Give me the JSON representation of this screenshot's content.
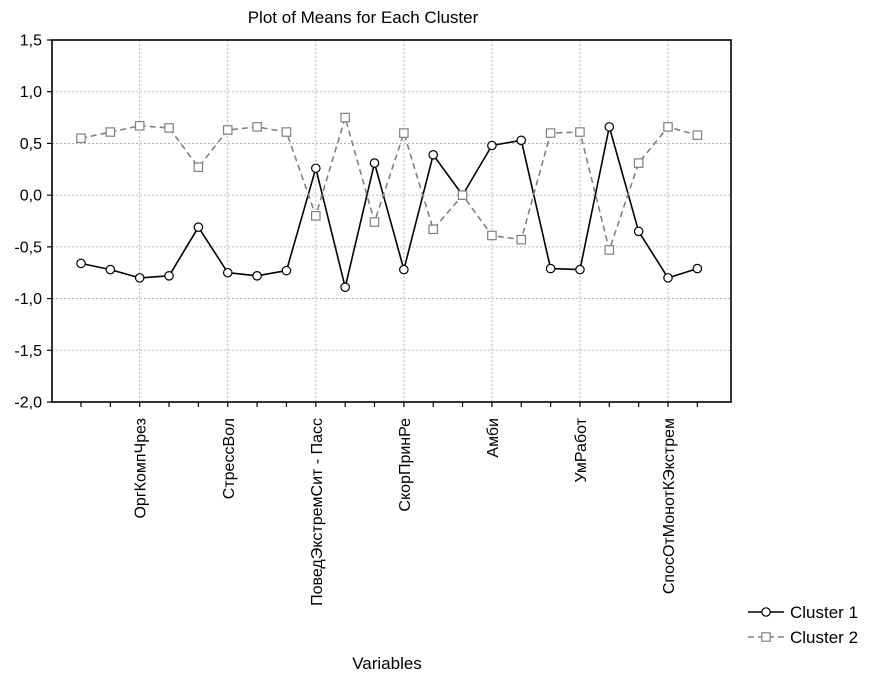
{
  "chart_data": {
    "type": "line",
    "title": "Plot of Means for Each Cluster",
    "xlabel": "Variables",
    "ylabel": "",
    "ylim": [
      -2.0,
      1.5
    ],
    "yticks": [
      "1,5",
      "1,0",
      "0,5",
      "0,0",
      "-0,5",
      "-1,0",
      "-1,5",
      "-2,0"
    ],
    "ytick_values": [
      1.5,
      1.0,
      0.5,
      0.0,
      -0.5,
      -1.0,
      -1.5,
      -2.0
    ],
    "grid": true,
    "legend_position": "bottom-right",
    "n_points": 22,
    "labeled_categories": [
      {
        "index": 2,
        "label": "ОргКомпЧрез"
      },
      {
        "index": 5,
        "label": "СтрессВол"
      },
      {
        "index": 8,
        "label": "ПоведЭкстремСит - Пасс"
      },
      {
        "index": 11,
        "label": "СкорПринРе"
      },
      {
        "index": 14,
        "label": "Амби"
      },
      {
        "index": 17,
        "label": "УмРабот"
      },
      {
        "index": 20,
        "label": "СпосОтМонотКЭкстрем"
      }
    ],
    "series": [
      {
        "name": "Cluster 1",
        "color": "#000000",
        "marker": "circle",
        "line_style": "solid",
        "values": [
          -0.66,
          -0.72,
          -0.8,
          -0.78,
          -0.31,
          -0.75,
          -0.78,
          -0.73,
          0.26,
          -0.89,
          0.31,
          -0.72,
          0.39,
          0.0,
          0.48,
          0.53,
          -0.71,
          -0.72,
          0.66,
          -0.35,
          -0.8,
          -0.71
        ]
      },
      {
        "name": "Cluster 2",
        "color": "#808080",
        "marker": "square",
        "line_style": "dashed",
        "values": [
          0.55,
          0.61,
          0.67,
          0.65,
          0.27,
          0.63,
          0.66,
          0.61,
          -0.2,
          0.75,
          -0.26,
          0.6,
          -0.33,
          0.0,
          -0.39,
          -0.43,
          0.6,
          0.61,
          -0.53,
          0.31,
          0.66,
          0.58
        ]
      }
    ]
  }
}
